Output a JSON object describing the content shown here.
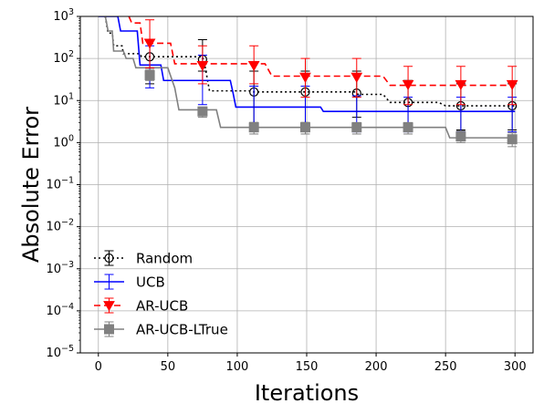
{
  "chart_data": {
    "type": "line",
    "xlabel": "Iterations",
    "ylabel": "Absolute Error",
    "xlim": [
      -13,
      313
    ],
    "ylim": [
      1e-05,
      1000
    ],
    "yscale": "log",
    "grid": true,
    "legend_position": "lower-left",
    "xticks": [
      0,
      50,
      100,
      150,
      200,
      250,
      300
    ],
    "xtick_labels": [
      "0",
      "50",
      "100",
      "150",
      "200",
      "250",
      "300"
    ],
    "yticks": [
      1e-05,
      0.0001,
      0.001,
      0.01,
      0.1,
      1,
      10,
      100,
      1000
    ],
    "ytick_mantissa": "10",
    "ytick_exponents": [
      "−5",
      "−4",
      "−3",
      "−2",
      "−1",
      "0",
      "1",
      "2",
      "3"
    ],
    "series": [
      {
        "name": "Random",
        "color": "#000000",
        "dash": "2,3",
        "marker": "circle-open",
        "line": [
          [
            5,
            1000
          ],
          [
            7,
            400
          ],
          [
            10,
            400
          ],
          [
            11,
            200
          ],
          [
            17,
            200
          ],
          [
            18,
            130
          ],
          [
            30,
            130
          ],
          [
            31,
            110
          ],
          [
            75,
            110
          ],
          [
            77,
            60
          ],
          [
            80,
            17
          ],
          [
            110,
            17
          ],
          [
            112,
            16
          ],
          [
            185,
            16
          ],
          [
            187,
            14
          ],
          [
            205,
            14
          ],
          [
            210,
            9
          ],
          [
            245,
            9
          ],
          [
            250,
            7.5
          ],
          [
            300,
            7.5
          ]
        ],
        "markers": [
          [
            37,
            110
          ],
          [
            75,
            95
          ],
          [
            112,
            16
          ],
          [
            149,
            16
          ],
          [
            186,
            15
          ],
          [
            223,
            9
          ],
          [
            261,
            7.5
          ],
          [
            298,
            7.5
          ]
        ],
        "err_low": [
          25,
          50,
          3,
          3,
          4,
          2.5,
          2,
          2
        ],
        "err_high": [
          270,
          280,
          50,
          50,
          50,
          30,
          25,
          25
        ]
      },
      {
        "name": "UCB",
        "color": "#0000ff",
        "dash": "",
        "marker": "none",
        "line": [
          [
            0,
            1000
          ],
          [
            14,
            1000
          ],
          [
            16,
            450
          ],
          [
            28,
            450
          ],
          [
            30,
            70
          ],
          [
            45,
            70
          ],
          [
            47,
            30
          ],
          [
            95,
            30
          ],
          [
            97,
            15
          ],
          [
            99,
            7
          ],
          [
            160,
            7
          ],
          [
            162,
            5.5
          ],
          [
            300,
            5.5
          ]
        ],
        "markers": [
          [
            37,
            70
          ],
          [
            75,
            30
          ],
          [
            112,
            7
          ],
          [
            149,
            7
          ],
          [
            186,
            5.5
          ],
          [
            223,
            5.5
          ],
          [
            261,
            5.5
          ],
          [
            298,
            5.5
          ]
        ],
        "err_low": [
          20,
          8,
          2.2,
          2.2,
          1.8,
          1.8,
          1.8,
          1.8
        ],
        "err_high": [
          200,
          120,
          22,
          22,
          13,
          12,
          12,
          12
        ]
      },
      {
        "name": "AR-UCB",
        "color": "#ff0000",
        "dash": "7,4",
        "marker": "triangle-down",
        "line": [
          [
            22,
            1000
          ],
          [
            24,
            700
          ],
          [
            30,
            700
          ],
          [
            32,
            230
          ],
          [
            52,
            230
          ],
          [
            55,
            75
          ],
          [
            120,
            75
          ],
          [
            125,
            38
          ],
          [
            205,
            38
          ],
          [
            210,
            23
          ],
          [
            300,
            23
          ]
        ],
        "markers": [
          [
            37,
            230
          ],
          [
            75,
            68
          ],
          [
            112,
            68
          ],
          [
            149,
            36
          ],
          [
            186,
            36
          ],
          [
            223,
            24
          ],
          [
            261,
            24
          ],
          [
            298,
            24
          ]
        ],
        "err_low": [
          60,
          25,
          25,
          12,
          12,
          8,
          8,
          8
        ],
        "err_high": [
          830,
          200,
          200,
          100,
          100,
          65,
          65,
          65
        ]
      },
      {
        "name": "AR-UCB-LTrue",
        "color": "#808080",
        "dash": "",
        "marker": "square",
        "line": [
          [
            5,
            1000
          ],
          [
            7,
            450
          ],
          [
            10,
            450
          ],
          [
            11,
            150
          ],
          [
            18,
            150
          ],
          [
            20,
            100
          ],
          [
            25,
            100
          ],
          [
            27,
            60
          ],
          [
            50,
            60
          ],
          [
            55,
            20
          ],
          [
            58,
            6
          ],
          [
            85,
            6
          ],
          [
            88,
            2.3
          ],
          [
            250,
            2.3
          ],
          [
            253,
            1.3
          ],
          [
            300,
            1.3
          ]
        ],
        "markers": [
          [
            37,
            40
          ],
          [
            75,
            5.5
          ],
          [
            112,
            2.3
          ],
          [
            149,
            2.3
          ],
          [
            186,
            2.3
          ],
          [
            223,
            2.3
          ],
          [
            261,
            1.4
          ],
          [
            298,
            1.2
          ]
        ],
        "err_low": [
          30,
          4,
          1.6,
          1.6,
          1.6,
          1.6,
          1,
          0.8
        ],
        "err_high": [
          55,
          7,
          3,
          3,
          3,
          3,
          1.9,
          1.7
        ]
      }
    ]
  }
}
